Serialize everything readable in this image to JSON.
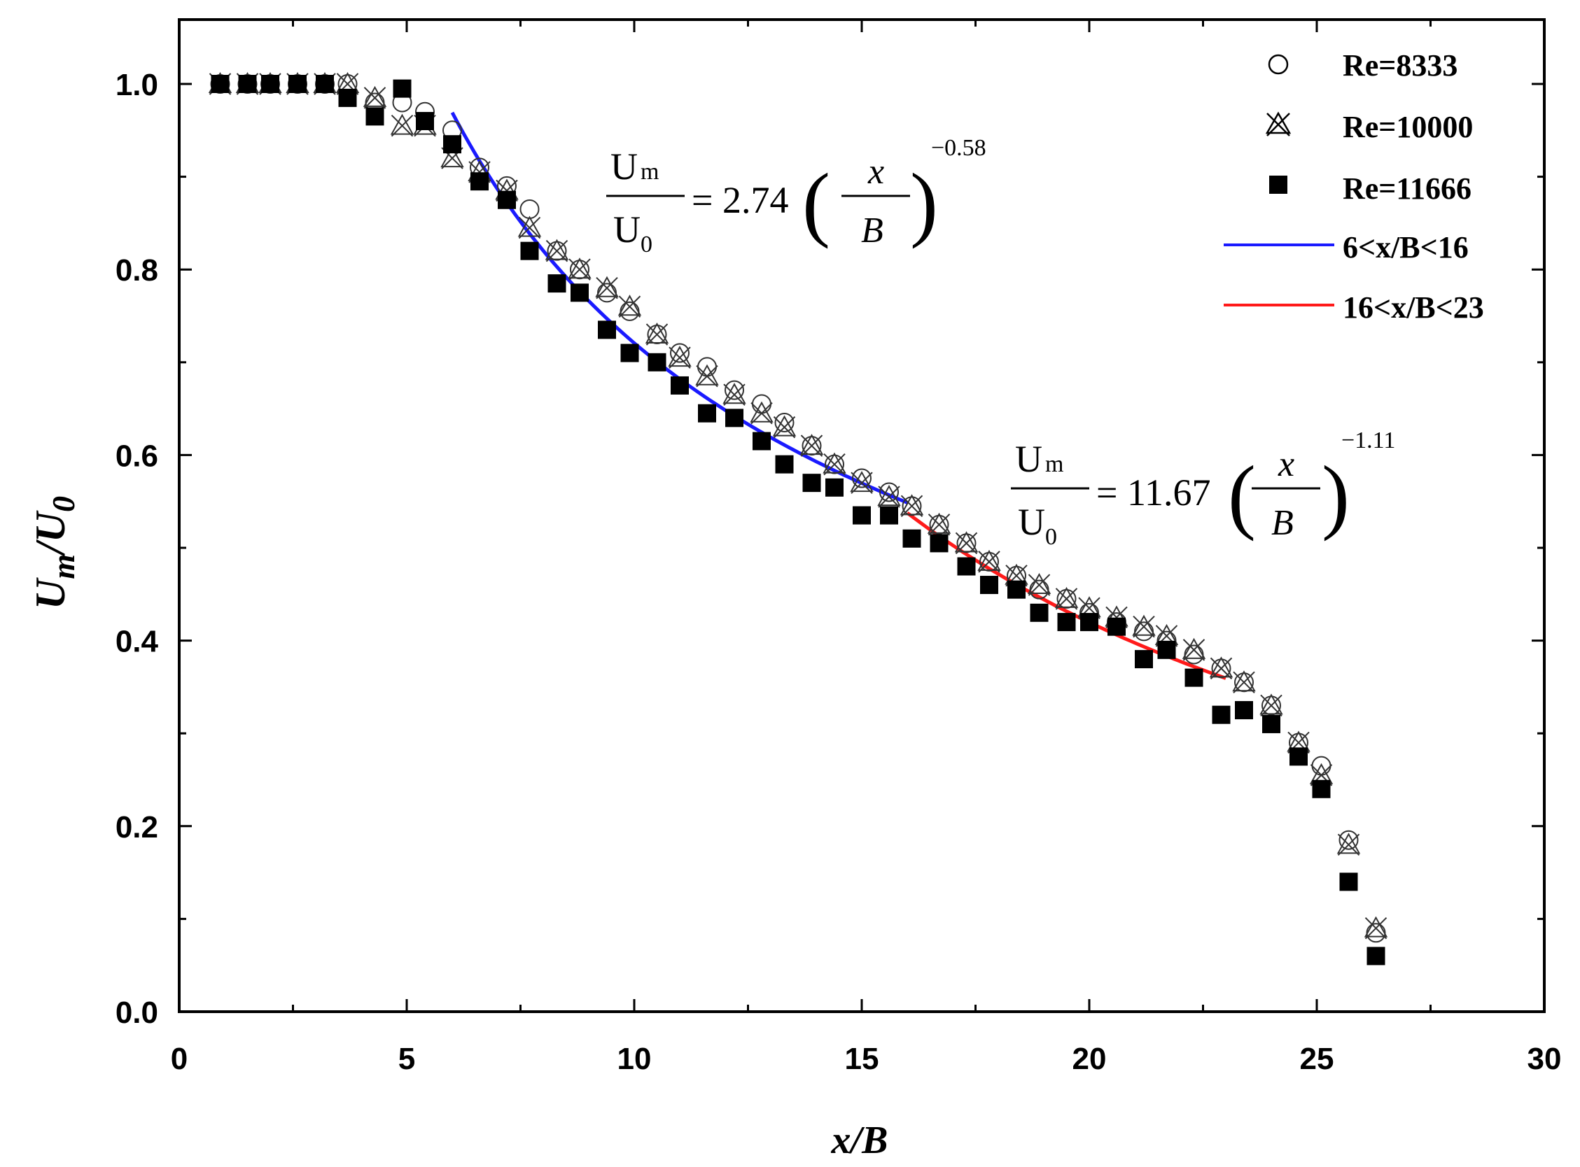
{
  "chart_data": {
    "type": "scatter",
    "title": "",
    "xlabel": "x/B",
    "ylabel_main": "U",
    "ylabel_sub1": "m",
    "ylabel_mid": "/U",
    "ylabel_sub2": "0",
    "xlim": [
      0,
      30
    ],
    "ylim": [
      0.0,
      1.08
    ],
    "xticks": [
      0,
      5,
      10,
      15,
      20,
      25,
      30
    ],
    "xtick_labels": [
      "0",
      "5",
      "10",
      "15",
      "20",
      "25",
      "30"
    ],
    "yticks": [
      0.0,
      0.2,
      0.4,
      0.6,
      0.8,
      1.0
    ],
    "ytick_labels": [
      "0.0",
      "0.2",
      "0.4",
      "0.6",
      "0.8",
      "1.0"
    ],
    "series": [
      {
        "name": "Re=8333",
        "marker": "open-circle",
        "points": [
          [
            0.9,
            1.0
          ],
          [
            1.5,
            1.0
          ],
          [
            2.0,
            1.0
          ],
          [
            2.6,
            1.0
          ],
          [
            3.2,
            1.0
          ],
          [
            3.7,
            1.0
          ],
          [
            4.3,
            0.98
          ],
          [
            4.9,
            0.98
          ],
          [
            5.4,
            0.97
          ],
          [
            6.0,
            0.95
          ],
          [
            6.6,
            0.91
          ],
          [
            7.2,
            0.89
          ],
          [
            7.7,
            0.865
          ],
          [
            8.3,
            0.82
          ],
          [
            8.8,
            0.8
          ],
          [
            9.4,
            0.775
          ],
          [
            9.9,
            0.755
          ],
          [
            10.5,
            0.73
          ],
          [
            11.0,
            0.71
          ],
          [
            11.6,
            0.695
          ],
          [
            12.2,
            0.67
          ],
          [
            12.8,
            0.655
          ],
          [
            13.3,
            0.635
          ],
          [
            13.9,
            0.61
          ],
          [
            14.4,
            0.59
          ],
          [
            15.0,
            0.575
          ],
          [
            15.6,
            0.56
          ],
          [
            16.1,
            0.545
          ],
          [
            16.7,
            0.525
          ],
          [
            17.3,
            0.505
          ],
          [
            17.8,
            0.485
          ],
          [
            18.4,
            0.47
          ],
          [
            18.9,
            0.455
          ],
          [
            19.5,
            0.445
          ],
          [
            20.0,
            0.43
          ],
          [
            20.6,
            0.42
          ],
          [
            21.2,
            0.41
          ],
          [
            21.7,
            0.4
          ],
          [
            22.3,
            0.385
          ],
          [
            22.9,
            0.37
          ],
          [
            23.4,
            0.355
          ],
          [
            24.0,
            0.33
          ],
          [
            24.6,
            0.29
          ],
          [
            25.1,
            0.265
          ],
          [
            25.7,
            0.185
          ],
          [
            26.3,
            0.085
          ]
        ]
      },
      {
        "name": "Re=10000",
        "marker": "triangle-x",
        "points": [
          [
            0.9,
            1.0
          ],
          [
            1.5,
            1.0
          ],
          [
            2.0,
            1.0
          ],
          [
            2.6,
            1.0
          ],
          [
            3.2,
            1.0
          ],
          [
            3.7,
            1.0
          ],
          [
            4.3,
            0.985
          ],
          [
            4.9,
            0.955
          ],
          [
            5.4,
            0.955
          ],
          [
            6.0,
            0.92
          ],
          [
            6.6,
            0.905
          ],
          [
            7.2,
            0.885
          ],
          [
            7.7,
            0.845
          ],
          [
            8.3,
            0.82
          ],
          [
            8.8,
            0.8
          ],
          [
            9.4,
            0.78
          ],
          [
            9.9,
            0.76
          ],
          [
            10.5,
            0.73
          ],
          [
            11.0,
            0.705
          ],
          [
            11.6,
            0.685
          ],
          [
            12.2,
            0.665
          ],
          [
            12.8,
            0.645
          ],
          [
            13.3,
            0.63
          ],
          [
            13.9,
            0.61
          ],
          [
            14.4,
            0.59
          ],
          [
            15.0,
            0.57
          ],
          [
            15.6,
            0.555
          ],
          [
            16.1,
            0.545
          ],
          [
            16.7,
            0.525
          ],
          [
            17.3,
            0.505
          ],
          [
            17.8,
            0.485
          ],
          [
            18.4,
            0.47
          ],
          [
            18.9,
            0.46
          ],
          [
            19.5,
            0.445
          ],
          [
            20.0,
            0.435
          ],
          [
            20.6,
            0.425
          ],
          [
            21.2,
            0.415
          ],
          [
            21.7,
            0.405
          ],
          [
            22.3,
            0.39
          ],
          [
            22.9,
            0.37
          ],
          [
            23.4,
            0.355
          ],
          [
            24.0,
            0.33
          ],
          [
            24.6,
            0.29
          ],
          [
            25.1,
            0.255
          ],
          [
            25.7,
            0.18
          ],
          [
            26.3,
            0.09
          ]
        ]
      },
      {
        "name": "Re=11666",
        "marker": "filled-square",
        "points": [
          [
            0.9,
            1.0
          ],
          [
            1.5,
            1.0
          ],
          [
            2.0,
            1.0
          ],
          [
            2.6,
            1.0
          ],
          [
            3.2,
            1.0
          ],
          [
            3.7,
            0.985
          ],
          [
            4.3,
            0.965
          ],
          [
            4.9,
            0.995
          ],
          [
            5.4,
            0.96
          ],
          [
            6.0,
            0.935
          ],
          [
            6.6,
            0.895
          ],
          [
            7.2,
            0.875
          ],
          [
            7.7,
            0.82
          ],
          [
            8.3,
            0.785
          ],
          [
            8.8,
            0.775
          ],
          [
            9.4,
            0.735
          ],
          [
            9.9,
            0.71
          ],
          [
            10.5,
            0.7
          ],
          [
            11.0,
            0.675
          ],
          [
            11.6,
            0.645
          ],
          [
            12.2,
            0.64
          ],
          [
            12.8,
            0.615
          ],
          [
            13.3,
            0.59
          ],
          [
            13.9,
            0.57
          ],
          [
            14.4,
            0.565
          ],
          [
            15.0,
            0.535
          ],
          [
            15.6,
            0.535
          ],
          [
            16.1,
            0.51
          ],
          [
            16.7,
            0.505
          ],
          [
            17.3,
            0.48
          ],
          [
            17.8,
            0.46
          ],
          [
            18.4,
            0.455
          ],
          [
            18.9,
            0.43
          ],
          [
            19.5,
            0.42
          ],
          [
            20.0,
            0.42
          ],
          [
            20.6,
            0.415
          ],
          [
            21.2,
            0.38
          ],
          [
            21.7,
            0.39
          ],
          [
            22.3,
            0.36
          ],
          [
            22.9,
            0.32
          ],
          [
            23.4,
            0.325
          ],
          [
            24.0,
            0.31
          ],
          [
            24.6,
            0.275
          ],
          [
            25.1,
            0.24
          ],
          [
            25.7,
            0.14
          ],
          [
            26.3,
            0.06
          ]
        ]
      }
    ],
    "fits": [
      {
        "name": "6<x/B<16",
        "color": "#1a1aff",
        "coef": 2.74,
        "exp": -0.58,
        "x_from": 6,
        "x_to": 16
      },
      {
        "name": "16<x/B<23",
        "color": "#ff1a1a",
        "coef": 11.67,
        "exp": -1.11,
        "x_from": 16,
        "x_to": 23
      }
    ],
    "legend": [
      "Re=8333",
      "Re=10000",
      "Re=11666",
      "6<x/B<16",
      "16<x/B<23"
    ],
    "legend_position": "top-right",
    "equations": [
      {
        "num_main": "U",
        "num_sub": "m",
        "den_main": "U",
        "den_sub": "0",
        "rhs": "= 2.74",
        "frac_num": "x",
        "frac_den": "B",
        "exponent": "−0.58"
      },
      {
        "num_main": "U",
        "num_sub": "m",
        "den_main": "U",
        "den_sub": "0",
        "rhs": "= 11.67",
        "frac_num": "x",
        "frac_den": "B",
        "exponent": "−1.11"
      }
    ]
  }
}
